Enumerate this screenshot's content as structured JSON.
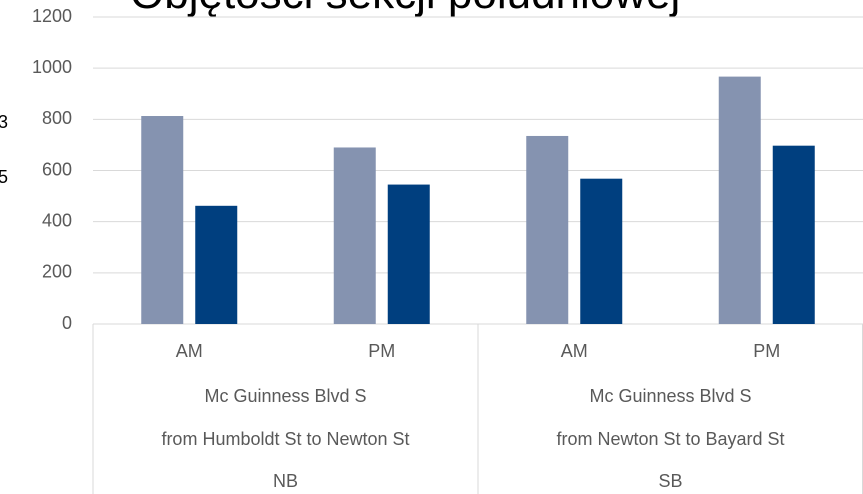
{
  "chart_data": {
    "type": "bar",
    "title": "Objętości sekcji południowej",
    "categories": [
      "AM",
      "PM",
      "AM",
      "PM"
    ],
    "groups": [
      {
        "lines": [
          "Mc Guinness Blvd S",
          "from Humboldt St to Newton St",
          "NB"
        ]
      },
      {
        "lines": [
          "Mc Guinness Blvd S",
          "from Newton St to Bayard St",
          "SB"
        ]
      }
    ],
    "series": [
      {
        "name": "3",
        "color": "#8593b0",
        "values": [
          813,
          690,
          735,
          967
        ]
      },
      {
        "name": "5",
        "color": "#003f7f",
        "values": [
          462,
          545,
          568,
          697
        ]
      }
    ],
    "ylim": [
      0,
      1200
    ],
    "yticks": [
      0,
      200,
      400,
      600,
      800,
      1000,
      1200
    ],
    "grid": true
  }
}
